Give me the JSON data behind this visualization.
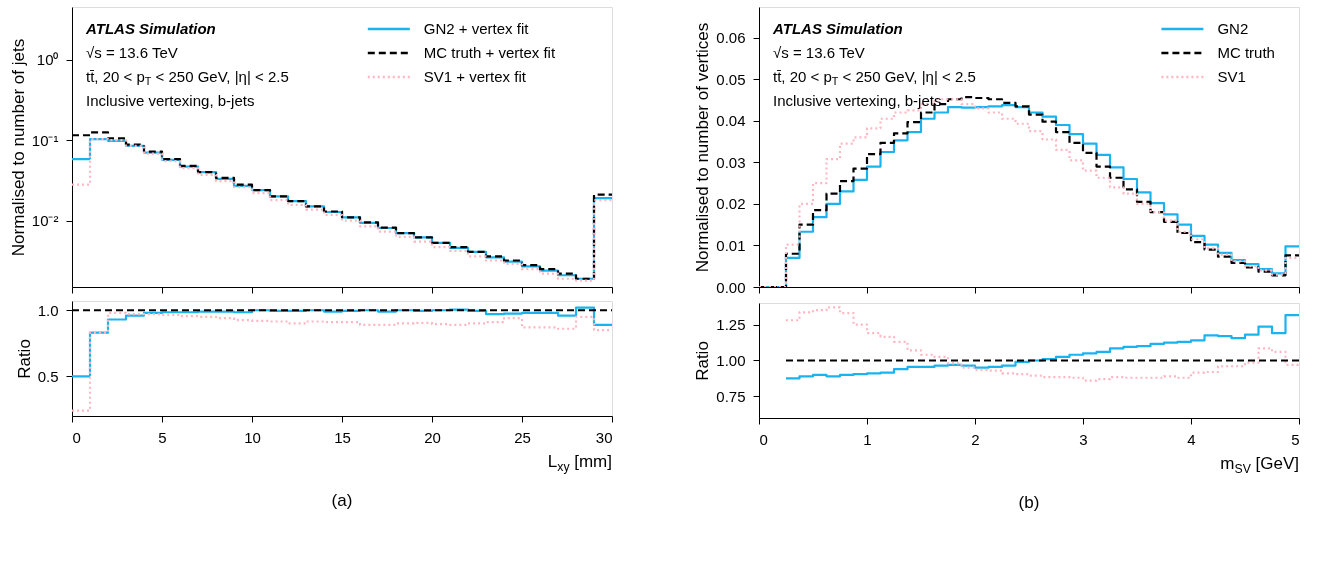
{
  "chart_data": [
    {
      "type": "histogram",
      "ylabel": "Normalised to number of jets",
      "log": "y",
      "legend": "top right",
      "tick_labels": "y",
      "grid": false,
      "annotations": [
        "ATLAS Simulation",
        "√s = 13.6 TeV",
        "tt̄, 20 < p$_{T}$ < 250 GeV, |η| < 2.5",
        "Inclusive vertexing, b-jets"
      ],
      "bins": [
        0,
        1,
        2,
        3,
        4,
        5,
        6,
        7,
        8,
        9,
        10,
        11,
        12,
        13,
        14,
        15,
        16,
        17,
        18,
        19,
        20,
        21,
        22,
        23,
        24,
        25,
        26,
        27,
        28,
        29,
        30
      ],
      "xlim": [
        0,
        30
      ],
      "xticks": [
        0,
        5,
        10,
        15,
        20,
        25,
        30
      ],
      "ylim": [
        0.0015,
        4.5
      ],
      "yticks": [
        {
          "value": 0.01,
          "label": "10⁻²"
        },
        {
          "value": 0.1,
          "label": "10⁻¹"
        },
        {
          "value": 1,
          "label": "10⁰"
        }
      ],
      "series": [
        {
          "name": "GN2 + vertex fit",
          "color": "#1ab2ef",
          "line_style": "solid",
          "values": [
            0.058,
            0.103,
            0.098,
            0.085,
            0.07,
            0.057,
            0.047,
            0.04,
            0.033,
            0.027,
            0.024,
            0.02,
            0.0175,
            0.015,
            0.0128,
            0.011,
            0.0094,
            0.0081,
            0.007,
            0.0062,
            0.0053,
            0.0046,
            0.0041,
            0.0035,
            0.0031,
            0.0027,
            0.0024,
            0.0021,
            0.0019,
            0.019
          ]
        },
        {
          "name": "MC truth + vertex fit",
          "color": "#000000",
          "line_style": "dashed",
          "values": [
            0.115,
            0.125,
            0.105,
            0.088,
            0.072,
            0.058,
            0.048,
            0.04,
            0.034,
            0.028,
            0.024,
            0.02,
            0.0175,
            0.015,
            0.013,
            0.011,
            0.0095,
            0.0082,
            0.007,
            0.0062,
            0.0053,
            0.0047,
            0.0041,
            0.0036,
            0.0032,
            0.0028,
            0.0025,
            0.0022,
            0.0019,
            0.021
          ]
        },
        {
          "name": "SV1 + vertex fit",
          "color": "#ffb6c1",
          "line_style": "dotted",
          "values": [
            0.028,
            0.103,
            0.1,
            0.085,
            0.068,
            0.055,
            0.045,
            0.037,
            0.031,
            0.026,
            0.022,
            0.018,
            0.0157,
            0.0137,
            0.0118,
            0.01,
            0.0085,
            0.0073,
            0.0063,
            0.0055,
            0.0047,
            0.0042,
            0.0036,
            0.0032,
            0.0029,
            0.0025,
            0.0022,
            0.0019,
            0.0018,
            0.018
          ]
        }
      ]
    },
    {
      "type": "histogram",
      "title": "(a)",
      "xlabel": "L$_{xy}$ [mm]",
      "ylabel": "Ratio",
      "grid": false,
      "bins": [
        0,
        1,
        2,
        3,
        4,
        5,
        6,
        7,
        8,
        9,
        10,
        11,
        12,
        13,
        14,
        15,
        16,
        17,
        18,
        19,
        20,
        21,
        22,
        23,
        24,
        25,
        26,
        27,
        28,
        29,
        30
      ],
      "xlim": [
        0,
        30
      ],
      "xticks": [
        0,
        5,
        10,
        15,
        20,
        25,
        30
      ],
      "ylim": [
        0.2,
        1.07
      ],
      "yticks": [
        0.5,
        {
          "value": 1,
          "label": "1.0"
        }
      ],
      "series": [
        {
          "color": "#1ab2ef",
          "line_style": "solid",
          "values": [
            0.5,
            0.83,
            0.93,
            0.96,
            0.98,
            0.985,
            0.985,
            0.99,
            0.99,
            0.985,
            1.0,
            0.995,
            0.995,
            1.0,
            0.99,
            0.995,
            1.0,
            0.99,
            1.0,
            0.995,
            1.0,
            1.005,
            0.995,
            0.97,
            0.975,
            0.98,
            0.98,
            0.96,
            1.02,
            0.89
          ]
        },
        {
          "color": "#ffb6c1",
          "line_style": "dotted",
          "values": [
            0.24,
            0.83,
            0.98,
            0.97,
            0.97,
            0.965,
            0.955,
            0.95,
            0.94,
            0.925,
            0.92,
            0.915,
            0.9,
            0.915,
            0.91,
            0.91,
            0.89,
            0.89,
            0.9,
            0.905,
            0.895,
            0.89,
            0.9,
            0.91,
            0.94,
            0.87,
            0.87,
            0.86,
            0.95,
            0.85
          ]
        },
        {
          "color": "#000000",
          "line_style": "dashed",
          "values": [
            1,
            1,
            1,
            1,
            1,
            1,
            1,
            1,
            1,
            1,
            1,
            1,
            1,
            1,
            1,
            1,
            1,
            1,
            1,
            1,
            1,
            1,
            1,
            1,
            1,
            1,
            1,
            1,
            1,
            1
          ]
        }
      ]
    },
    {
      "type": "histogram",
      "ylabel": "Normalised to number of vertices",
      "legend": "top right",
      "tick_labels": "y",
      "grid": false,
      "annotations": [
        "ATLAS Simulation",
        "√s = 13.6 TeV",
        "tt̄, 20 < p$_{T}$ < 250 GeV, |η| < 2.5",
        "Inclusive vertexing, b-jets"
      ],
      "bins": [
        0,
        0.125,
        0.25,
        0.375,
        0.5,
        0.625,
        0.75,
        0.875,
        1,
        1.125,
        1.25,
        1.375,
        1.5,
        1.625,
        1.75,
        1.875,
        2,
        2.125,
        2.25,
        2.375,
        2.5,
        2.625,
        2.75,
        2.875,
        3,
        3.125,
        3.25,
        3.375,
        3.5,
        3.625,
        3.75,
        3.875,
        4,
        4.125,
        4.25,
        4.375,
        4.5,
        4.625,
        4.75,
        4.875,
        5
      ],
      "xlim": [
        0,
        5
      ],
      "xticks": [
        0,
        1,
        2,
        3,
        4,
        5
      ],
      "ylim": [
        0,
        0.0674
      ],
      "yticks": [
        {
          "value": 0,
          "label": "0.00"
        },
        {
          "value": 0.01,
          "label": "0.01"
        },
        {
          "value": 0.02,
          "label": "0.02"
        },
        {
          "value": 0.03,
          "label": "0.03"
        },
        {
          "value": 0.04,
          "label": "0.04"
        },
        {
          "value": 0.05,
          "label": "0.05"
        },
        {
          "value": 0.06,
          "label": "0.06"
        }
      ],
      "series": [
        {
          "name": "GN2",
          "color": "#1ab2ef",
          "line_style": "solid",
          "values": [
            0,
            0,
            0.007,
            0.0133,
            0.0168,
            0.02,
            0.023,
            0.0258,
            0.029,
            0.0325,
            0.0353,
            0.0373,
            0.0405,
            0.042,
            0.0433,
            0.0432,
            0.0433,
            0.0435,
            0.0438,
            0.0433,
            0.042,
            0.041,
            0.039,
            0.0368,
            0.0345,
            0.0318,
            0.0288,
            0.026,
            0.0228,
            0.0202,
            0.0175,
            0.015,
            0.0123,
            0.0102,
            0.0082,
            0.0065,
            0.0055,
            0.0043,
            0.0033,
            0.0098
          ]
        },
        {
          "name": "MC truth",
          "color": "#000000",
          "line_style": "dashed",
          "values": [
            0,
            0,
            0.008,
            0.015,
            0.0185,
            0.0225,
            0.0255,
            0.0285,
            0.032,
            0.0347,
            0.037,
            0.0397,
            0.042,
            0.044,
            0.0452,
            0.0457,
            0.0455,
            0.0452,
            0.0443,
            0.0435,
            0.0415,
            0.0398,
            0.0373,
            0.0347,
            0.0323,
            0.029,
            0.0263,
            0.0235,
            0.0205,
            0.018,
            0.0157,
            0.013,
            0.0108,
            0.009,
            0.0073,
            0.0058,
            0.0047,
            0.0037,
            0.0028,
            0.0076
          ]
        },
        {
          "name": "SV1",
          "color": "#ffb6c1",
          "line_style": "dotted",
          "values": [
            0,
            0,
            0.0102,
            0.02,
            0.025,
            0.0308,
            0.0345,
            0.036,
            0.0382,
            0.0405,
            0.042,
            0.0425,
            0.044,
            0.0452,
            0.0452,
            0.044,
            0.043,
            0.042,
            0.0405,
            0.0393,
            0.0375,
            0.0355,
            0.033,
            0.0305,
            0.028,
            0.0263,
            0.024,
            0.0225,
            0.02,
            0.018,
            0.016,
            0.0133,
            0.0115,
            0.0093,
            0.0078,
            0.0062,
            0.005,
            0.004,
            0.003,
            0.007
          ]
        }
      ]
    },
    {
      "type": "histogram",
      "title": "(b)",
      "xlabel": "m$_{SV}$ [GeV]",
      "ylabel": "Ratio",
      "grid": false,
      "bins": [
        0.25,
        0.375,
        0.5,
        0.625,
        0.75,
        0.875,
        1,
        1.125,
        1.25,
        1.375,
        1.5,
        1.625,
        1.75,
        1.875,
        2,
        2.125,
        2.25,
        2.375,
        2.5,
        2.625,
        2.75,
        2.875,
        3,
        3.125,
        3.25,
        3.375,
        3.5,
        3.625,
        3.75,
        3.875,
        4,
        4.125,
        4.25,
        4.375,
        4.5,
        4.625,
        4.75,
        4.875,
        5
      ],
      "xlim": [
        0,
        5
      ],
      "xticks": [
        0,
        1,
        2,
        3,
        4,
        5
      ],
      "ylim": [
        0.6,
        1.4
      ],
      "yticks": [
        0.75,
        {
          "value": 1,
          "label": "1.00"
        },
        1.25
      ],
      "series": [
        {
          "color": "#1ab2ef",
          "line_style": "solid",
          "values": [
            0.875,
            0.89,
            0.9,
            0.89,
            0.9,
            0.905,
            0.91,
            0.915,
            0.94,
            0.955,
            0.955,
            0.965,
            0.97,
            0.965,
            0.95,
            0.955,
            0.965,
            0.99,
            1.0,
            1.01,
            1.025,
            1.04,
            1.05,
            1.06,
            1.085,
            1.095,
            1.1,
            1.115,
            1.125,
            1.13,
            1.14,
            1.175,
            1.17,
            1.155,
            1.18,
            1.235,
            1.19,
            1.315
          ]
        },
        {
          "color": "#ffb6c1",
          "line_style": "dotted",
          "values": [
            1.28,
            1.335,
            1.35,
            1.37,
            1.33,
            1.25,
            1.19,
            1.165,
            1.13,
            1.07,
            1.04,
            1.025,
            0.98,
            0.95,
            0.935,
            0.93,
            0.91,
            0.905,
            0.895,
            0.885,
            0.885,
            0.88,
            0.86,
            0.87,
            0.885,
            0.88,
            0.88,
            0.88,
            0.89,
            0.88,
            0.915,
            0.92,
            0.96,
            0.96,
            0.985,
            1.085,
            1.06,
            0.97
          ]
        },
        {
          "color": "#000000",
          "line_style": "dashed",
          "values": [
            1,
            1,
            1,
            1,
            1,
            1,
            1,
            1,
            1,
            1,
            1,
            1,
            1,
            1,
            1,
            1,
            1,
            1,
            1,
            1,
            1,
            1,
            1,
            1,
            1,
            1,
            1,
            1,
            1,
            1,
            1,
            1,
            1,
            1,
            1,
            1,
            1,
            1
          ]
        }
      ]
    }
  ]
}
